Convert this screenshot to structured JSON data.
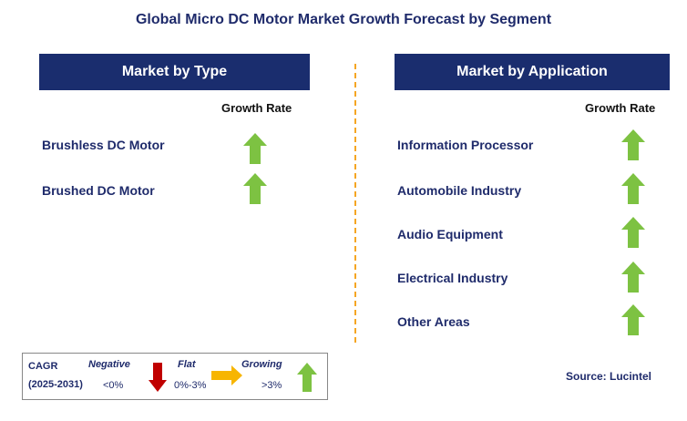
{
  "title": "Global Micro DC Motor Market Growth Forecast by Segment",
  "colors": {
    "header_bg": "#1a2d6e",
    "text_navy": "#1f2b6b",
    "arrow_green": "#7dc242",
    "arrow_red": "#c00000",
    "arrow_yellow": "#f7b500",
    "divider": "#f5a623"
  },
  "type_panel": {
    "header": "Market by Type",
    "column_label": "Growth Rate",
    "items": [
      {
        "label": "Brushless DC Motor",
        "trend": "growing"
      },
      {
        "label": "Brushed DC Motor",
        "trend": "growing"
      }
    ]
  },
  "application_panel": {
    "header": "Market by Application",
    "column_label": "Growth Rate",
    "items": [
      {
        "label": "Information Processor",
        "trend": "growing"
      },
      {
        "label": "Automobile Industry",
        "trend": "growing"
      },
      {
        "label": "Audio Equipment",
        "trend": "growing"
      },
      {
        "label": "Electrical Industry",
        "trend": "growing"
      },
      {
        "label": "Other Areas",
        "trend": "growing"
      }
    ]
  },
  "legend": {
    "cagr_label": "CAGR",
    "period": "(2025-2031)",
    "negative_label": "Negative",
    "negative_range": "<0%",
    "flat_label": "Flat",
    "flat_range": "0%-3%",
    "growing_label": "Growing",
    "growing_range": ">3%"
  },
  "source": "Source: Lucintel"
}
